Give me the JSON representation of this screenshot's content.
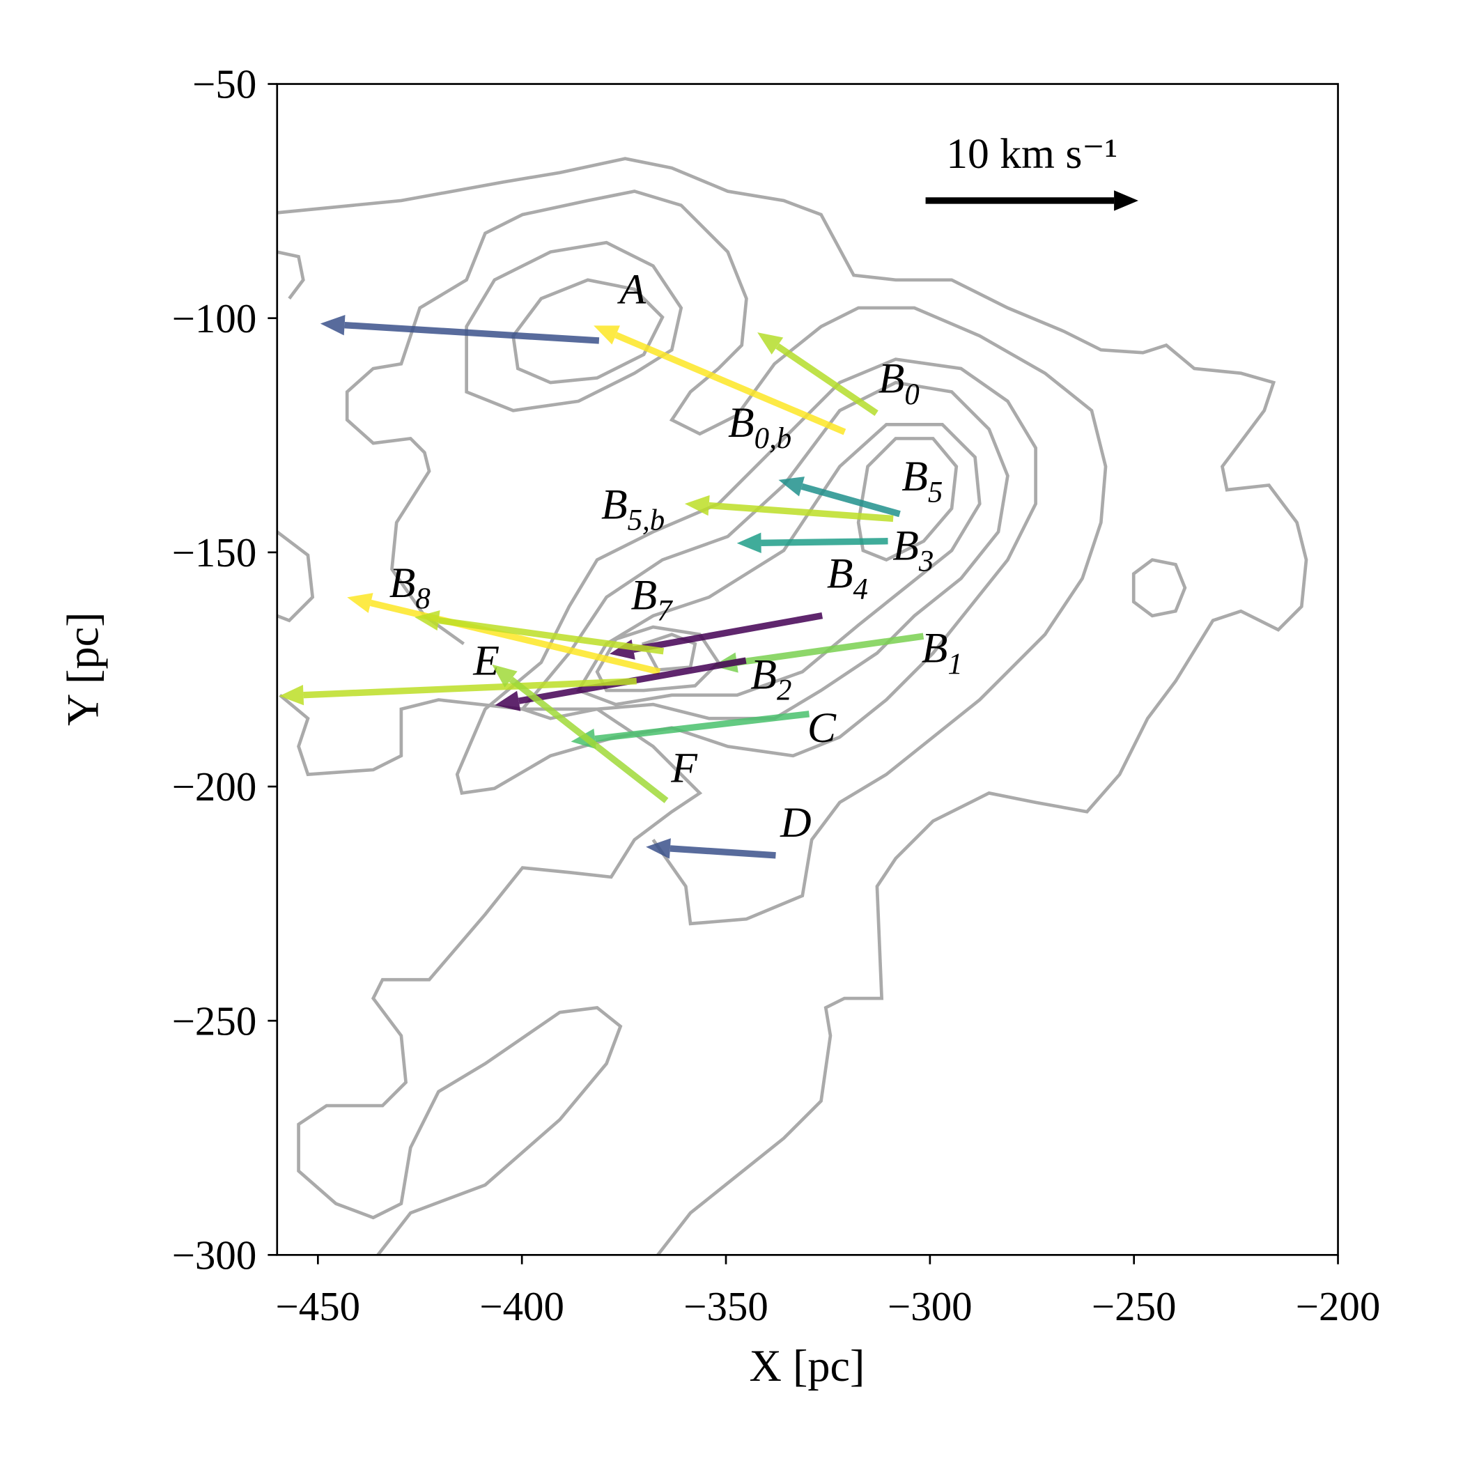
{
  "chart_data": {
    "type": "quiver",
    "xlabel": "X [pc]",
    "ylabel": "Y [pc]",
    "xlim": [
      -460,
      -200
    ],
    "ylim": [
      -300,
      -50
    ],
    "xticks": [
      {
        "value": -450,
        "label": "−450"
      },
      {
        "value": -400,
        "label": "−400"
      },
      {
        "value": -350,
        "label": "−350"
      },
      {
        "value": -300,
        "label": "−300"
      },
      {
        "value": -250,
        "label": "−250"
      },
      {
        "value": -200,
        "label": "−200"
      }
    ],
    "yticks": [
      {
        "value": -300,
        "label": "−300"
      },
      {
        "value": -250,
        "label": "−250"
      },
      {
        "value": -200,
        "label": "−200"
      },
      {
        "value": -150,
        "label": "−150"
      },
      {
        "value": -100,
        "label": "−100"
      },
      {
        "value": -50,
        "label": "−50"
      }
    ],
    "key": {
      "value": 10,
      "label": "10 km s⁻¹",
      "color": "#000000"
    },
    "arrows": [
      {
        "label": "A",
        "x": -381.1,
        "y": -104.8,
        "u": -13.1,
        "v": 0.8,
        "color": "#3b528b"
      },
      {
        "label": "B",
        "subscript": "0,b",
        "x": -320.9,
        "y": -124.3,
        "u": -11.8,
        "v": 5.0,
        "color": "#fde725"
      },
      {
        "label": "B",
        "subscript": "0",
        "x": -313.1,
        "y": -120.3,
        "u": -5.6,
        "v": 3.8,
        "color": "#b5de2b"
      },
      {
        "label": "B",
        "subscript": "5",
        "x": -307.4,
        "y": -141.8,
        "u": -5.7,
        "v": 1.6,
        "color": "#21918c"
      },
      {
        "label": "B",
        "subscript": "5,b",
        "x": -309.0,
        "y": -142.8,
        "u": -9.8,
        "v": 0.7,
        "color": "#bddf26"
      },
      {
        "label": "B",
        "subscript": "3",
        "x": -310.3,
        "y": -147.6,
        "u": -7.1,
        "v": -0.1,
        "color": "#1f9e89"
      },
      {
        "label": "B",
        "subscript": "4",
        "x": -326.4,
        "y": -163.5,
        "u": -10.0,
        "v": -1.8,
        "color": "#440154"
      },
      {
        "label": "B",
        "subscript": "8",
        "x": -366.2,
        "y": -175.5,
        "u": -14.7,
        "v": 3.5,
        "color": "#fde725"
      },
      {
        "label": "B",
        "subscript": "7",
        "x": -365.3,
        "y": -171.1,
        "u": -11.7,
        "v": 1.6,
        "color": "#bddf26"
      },
      {
        "label": "B",
        "subscript": "1",
        "x": -301.6,
        "y": -167.9,
        "u": -9.9,
        "v": -1.4,
        "color": "#7ad151"
      },
      {
        "label": "B",
        "subscript": "2",
        "x": -345.1,
        "y": -173.1,
        "u": -11.8,
        "v": -2.1,
        "color": "#440154"
      },
      {
        "label": "E",
        "x": -371.9,
        "y": -177.5,
        "u": -16.8,
        "v": -0.7,
        "color": "#bddf26"
      },
      {
        "label": "C",
        "x": -329.6,
        "y": -184.5,
        "u": -11.2,
        "v": -1.3,
        "color": "#4ac16d"
      },
      {
        "label": "F",
        "x": -364.6,
        "y": -203.0,
        "u": -8.2,
        "v": 6.4,
        "color": "#a0da39"
      },
      {
        "label": "D",
        "x": -337.8,
        "y": -214.7,
        "u": -6.1,
        "v": 0.4,
        "color": "#3b528b"
      }
    ]
  }
}
